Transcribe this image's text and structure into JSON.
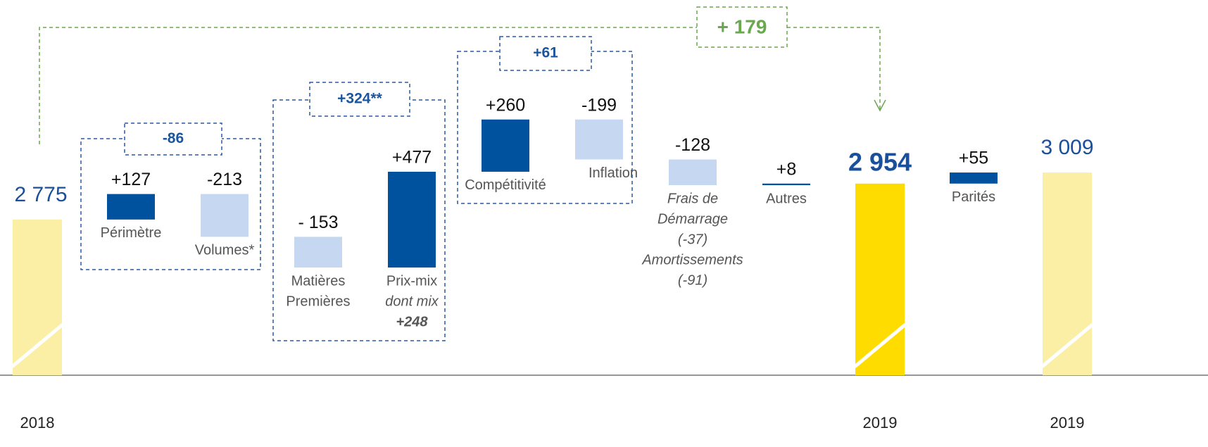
{
  "chart_data": {
    "type": "waterfall",
    "categories": [
      "2018",
      null,
      null,
      null,
      null,
      null,
      null,
      null,
      null,
      "2019",
      null,
      "2019"
    ],
    "values": [
      2775,
      127,
      -213,
      -153,
      477,
      260,
      -199,
      -128,
      8,
      2954,
      55,
      3009
    ],
    "value_labels": [
      "2 775",
      "+127",
      "-213",
      "- 153",
      "+477",
      "+260",
      "-199",
      "-128",
      "+8",
      "2 954",
      "+55",
      "3 009"
    ],
    "is_total": [
      true,
      false,
      false,
      false,
      false,
      false,
      false,
      false,
      false,
      true,
      false,
      true
    ],
    "bar_captions": [
      null,
      [
        "Périmètre"
      ],
      [
        "Volumes*"
      ],
      [
        "Matières",
        "Premières"
      ],
      [
        "Prix-mix",
        "dont mix",
        "+248"
      ],
      [
        "Compétitivité"
      ],
      [
        "Inflation"
      ],
      [
        "Frais de",
        "Démarrage",
        "(-37)",
        "Amortissements",
        "(-91)"
      ],
      [
        "Autres"
      ],
      null,
      [
        "Parités"
      ],
      null
    ],
    "colors": [
      "#fbefa6",
      "#00519e",
      "#c6d8f1",
      "#c6d8f1",
      "#00519e",
      "#00519e",
      "#c6d8f1",
      "#c6d8f1",
      "#00519e",
      "#ffdc00",
      "#00519e",
      "#fbefa6"
    ],
    "annotations": [
      "-86",
      "+324**",
      "+61",
      "+ 179"
    ],
    "ylim": [
      2000,
      3500
    ]
  }
}
